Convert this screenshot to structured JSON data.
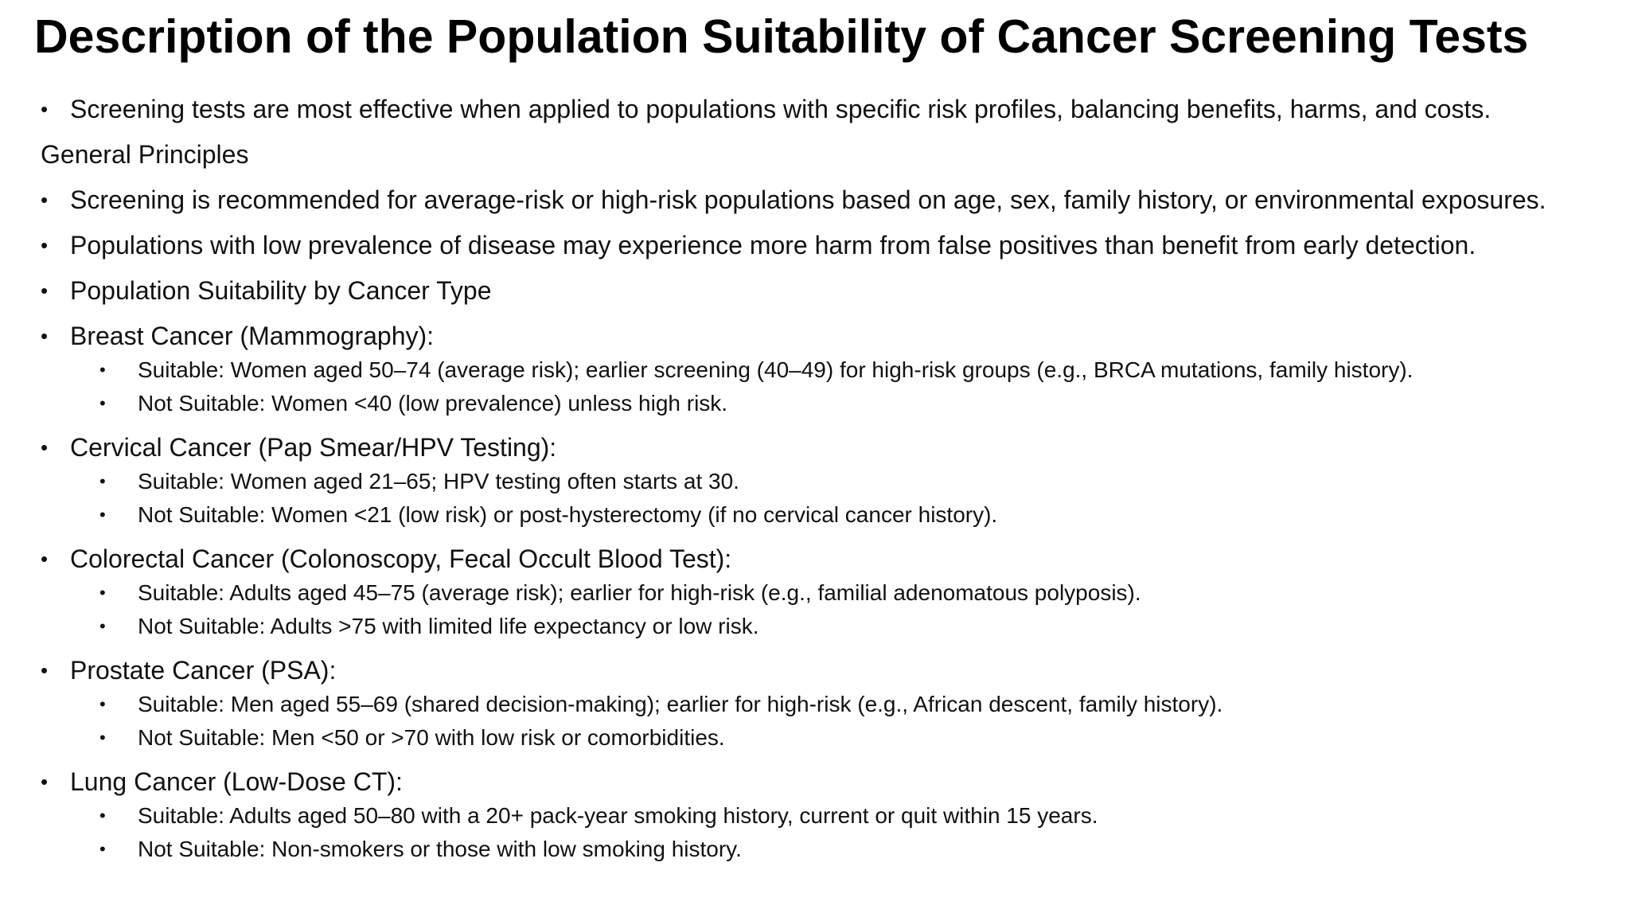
{
  "title": "Description of the Population Suitability of Cancer Screening Tests",
  "intro": "Screening tests are most effective when applied to populations with specific risk profiles, balancing benefits, harms, and costs.",
  "section_heading": "General Principles",
  "principles": [
    "Screening is recommended for average-risk or high-risk populations based on age, sex, family history, or environmental exposures.",
    "Populations with low prevalence of disease may experience more harm from false positives than benefit from early detection.",
    "Population Suitability by Cancer Type"
  ],
  "cancers": [
    {
      "heading": "Breast Cancer (Mammography):",
      "suitable": "Suitable: Women aged 50–74 (average risk); earlier screening (40–49) for high-risk groups (e.g., BRCA mutations, family history).",
      "not_suitable": "Not Suitable: Women <40 (low prevalence) unless high risk."
    },
    {
      "heading": "Cervical Cancer (Pap Smear/HPV Testing):",
      "suitable": "Suitable: Women aged 21–65; HPV testing often starts at 30.",
      "not_suitable": "Not Suitable: Women <21 (low risk) or post-hysterectomy (if no cervical cancer history)."
    },
    {
      "heading": "Colorectal Cancer (Colonoscopy, Fecal Occult Blood Test):",
      "suitable": "Suitable: Adults aged 45–75 (average risk); earlier for high-risk (e.g., familial adenomatous polyposis).",
      "not_suitable": "Not Suitable: Adults >75 with limited life expectancy or low risk."
    },
    {
      "heading": "Prostate Cancer (PSA):",
      "suitable": "Suitable: Men aged 55–69 (shared decision-making); earlier for high-risk (e.g., African descent, family history).",
      "not_suitable": "Not Suitable: Men <50 or >70 with low risk or comorbidities."
    },
    {
      "heading": "Lung Cancer (Low-Dose CT):",
      "suitable": "Suitable: Adults aged 50–80 with a 20+ pack-year smoking history, current or quit within 15 years.",
      "not_suitable": "Not Suitable: Non-smokers or those with low smoking history."
    }
  ]
}
